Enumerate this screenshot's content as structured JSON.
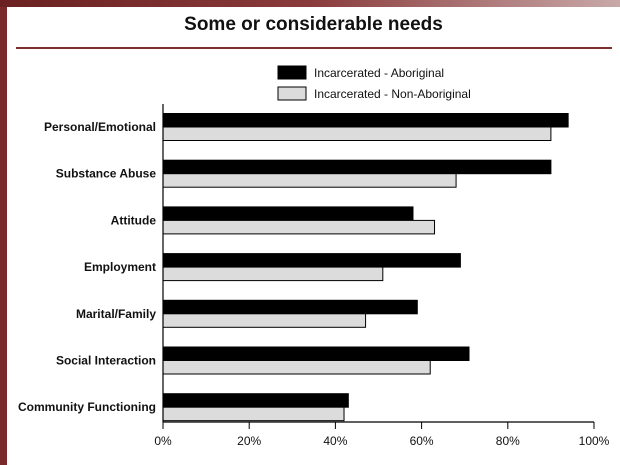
{
  "chart_data": {
    "type": "bar",
    "orientation": "horizontal",
    "title": "Some or considerable needs",
    "categories": [
      "Personal/Emotional",
      "Substance Abuse",
      "Attitude",
      "Employment",
      "Marital/Family",
      "Social Interaction",
      "Community Functioning"
    ],
    "series": [
      {
        "name": "Incarcerated - Aboriginal",
        "values": [
          94,
          90,
          58,
          69,
          59,
          71,
          43
        ],
        "color": "#000000"
      },
      {
        "name": "Incarcerated - Non-Aboriginal",
        "values": [
          90,
          68,
          63,
          51,
          47,
          62,
          42
        ],
        "color": "#dcdcdc"
      }
    ],
    "xlim": [
      0,
      100
    ],
    "xticks": [
      "0%",
      "20%",
      "40%",
      "60%",
      "80%",
      "100%"
    ],
    "xlabel": "",
    "ylabel": "",
    "grid": false,
    "legend_position": "top"
  }
}
